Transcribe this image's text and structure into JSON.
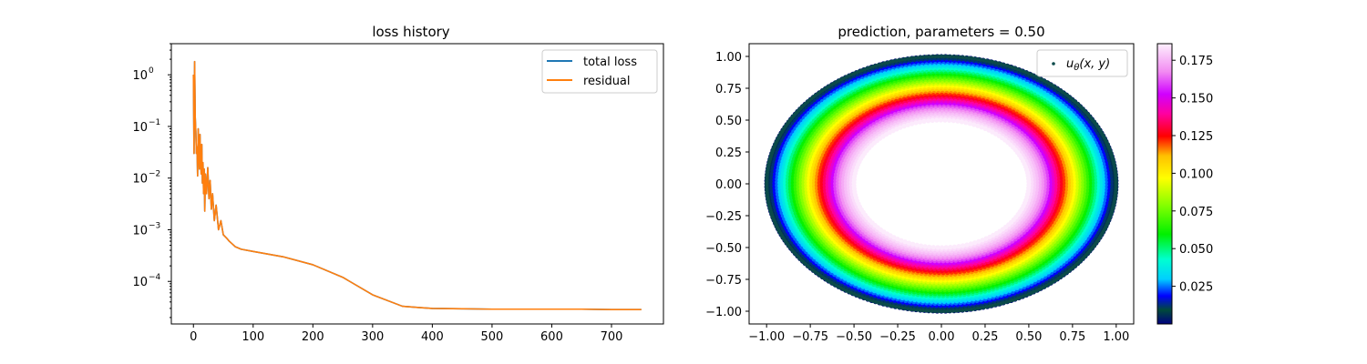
{
  "chart_data": [
    {
      "type": "line",
      "title": "loss history",
      "xlabel": "",
      "ylabel": "",
      "xlim": [
        -37,
        787
      ],
      "ylim": [
        1.5e-05,
        4.0
      ],
      "yscale": "log",
      "grid": false,
      "legend_placement": "top-right",
      "xticks": [
        0,
        100,
        200,
        300,
        400,
        500,
        600,
        700
      ],
      "xtick_labels": [
        "0",
        "100",
        "200",
        "300",
        "400",
        "500",
        "600",
        "700"
      ],
      "yticks": [
        0.0001,
        0.001,
        0.01,
        0.1,
        1
      ],
      "ytick_labels": [
        "10",
        "10",
        "10",
        "10",
        "10"
      ],
      "ytick_exponents": [
        "−4",
        "−3",
        "−2",
        "−1",
        "0"
      ],
      "series": [
        {
          "name": "total loss",
          "color": "#1f77b4",
          "x": [
            0,
            1,
            2,
            3,
            4,
            5,
            6,
            7,
            8,
            9,
            10,
            11,
            12,
            13,
            14,
            15,
            16,
            17,
            18,
            19,
            20,
            22,
            24,
            26,
            28,
            30,
            32,
            35,
            38,
            42,
            46,
            50,
            55,
            60,
            70,
            80,
            100,
            150,
            200,
            250,
            300,
            350,
            380,
            400,
            450,
            500,
            550,
            600,
            650,
            700,
            750
          ],
          "y": [
            1.0,
            0.03,
            1.8,
            0.15,
            0.08,
            0.03,
            0.04,
            0.011,
            0.09,
            0.04,
            0.015,
            0.07,
            0.025,
            0.012,
            0.045,
            0.008,
            0.02,
            0.005,
            0.015,
            0.0023,
            0.012,
            0.005,
            0.016,
            0.004,
            0.009,
            0.0025,
            0.005,
            0.0015,
            0.003,
            0.001,
            0.0015,
            0.0008,
            0.0007,
            0.0006,
            0.00047,
            0.00042,
            0.00038,
            0.0003,
            0.00021,
            0.00012,
            5.5e-05,
            3.3e-05,
            3.1e-05,
            3e-05,
            2.95e-05,
            2.9e-05,
            2.9e-05,
            2.9e-05,
            2.9e-05,
            2.85e-05,
            2.85e-05
          ]
        },
        {
          "name": "residual",
          "color": "#ff7f0e",
          "x": [
            0,
            1,
            2,
            3,
            4,
            5,
            6,
            7,
            8,
            9,
            10,
            11,
            12,
            13,
            14,
            15,
            16,
            17,
            18,
            19,
            20,
            22,
            24,
            26,
            28,
            30,
            32,
            35,
            38,
            42,
            46,
            50,
            55,
            60,
            70,
            80,
            100,
            150,
            200,
            250,
            300,
            350,
            380,
            400,
            450,
            500,
            550,
            600,
            650,
            700,
            750
          ],
          "y": [
            1.0,
            0.03,
            1.8,
            0.15,
            0.08,
            0.03,
            0.04,
            0.011,
            0.09,
            0.04,
            0.015,
            0.07,
            0.025,
            0.012,
            0.045,
            0.008,
            0.02,
            0.005,
            0.015,
            0.0023,
            0.012,
            0.005,
            0.016,
            0.004,
            0.009,
            0.0025,
            0.005,
            0.0015,
            0.003,
            0.001,
            0.0015,
            0.0008,
            0.0007,
            0.0006,
            0.00047,
            0.00042,
            0.00038,
            0.0003,
            0.00021,
            0.00012,
            5.5e-05,
            3.3e-05,
            3.1e-05,
            3e-05,
            2.95e-05,
            2.9e-05,
            2.9e-05,
            2.9e-05,
            2.9e-05,
            2.85e-05,
            2.85e-05
          ]
        }
      ]
    },
    {
      "type": "scatter",
      "title": "prediction, parameters = 0.50",
      "xlabel": "",
      "ylabel": "",
      "xlim": [
        -1.1,
        1.1
      ],
      "ylim": [
        -1.1,
        1.1
      ],
      "grid": false,
      "legend_placement": "top-right",
      "xticks": [
        -1.0,
        -0.75,
        -0.5,
        -0.25,
        0.0,
        0.25,
        0.5,
        0.75,
        1.0
      ],
      "xtick_labels": [
        "−1.00",
        "−0.75",
        "−0.50",
        "−0.25",
        "0.00",
        "0.25",
        "0.50",
        "0.75",
        "1.00"
      ],
      "yticks": [
        -1.0,
        -0.75,
        -0.5,
        -0.25,
        0.0,
        0.25,
        0.5,
        0.75,
        1.0
      ],
      "ytick_labels": [
        "−1.00",
        "−0.75",
        "−0.50",
        "−0.25",
        "0.00",
        "0.25",
        "0.50",
        "0.75",
        "1.00"
      ],
      "domain": {
        "shape": "annulus",
        "inner_radius": 0.5,
        "outer_radius": 1.0
      },
      "series": [
        {
          "name": "u_θ(x, y)",
          "legend_label": "u",
          "legend_subscript": "θ",
          "legend_args": "(x, y)",
          "marker_color": "#0b4a4a",
          "value_by_radius": {
            "r": [
              0.5,
              0.55,
              0.6,
              0.65,
              0.7,
              0.75,
              0.8,
              0.85,
              0.9,
              0.95,
              1.0
            ],
            "u": [
              0.185,
              0.176,
              0.162,
              0.14,
              0.12,
              0.1,
              0.08,
              0.06,
              0.04,
              0.02,
              0.0
            ]
          }
        }
      ],
      "colorbar": {
        "colormap": "gist_ncar",
        "vmin": 0.0,
        "vmax": 0.186,
        "ticks": [
          0.025,
          0.05,
          0.075,
          0.1,
          0.125,
          0.15,
          0.175
        ],
        "tick_labels": [
          "0.025",
          "0.050",
          "0.075",
          "0.100",
          "0.125",
          "0.150",
          "0.175"
        ],
        "stops": [
          {
            "v": 0.0,
            "color": "#000080"
          },
          {
            "v": 0.05,
            "color": "#004a3a"
          },
          {
            "v": 0.1,
            "color": "#0000ff"
          },
          {
            "v": 0.16,
            "color": "#00cfff"
          },
          {
            "v": 0.23,
            "color": "#00ffd0"
          },
          {
            "v": 0.32,
            "color": "#00f000"
          },
          {
            "v": 0.42,
            "color": "#80ff00"
          },
          {
            "v": 0.52,
            "color": "#ffff00"
          },
          {
            "v": 0.6,
            "color": "#ffc000"
          },
          {
            "v": 0.67,
            "color": "#ff0000"
          },
          {
            "v": 0.75,
            "color": "#ff00a0"
          },
          {
            "v": 0.82,
            "color": "#d000ff"
          },
          {
            "v": 0.9,
            "color": "#f28bf2"
          },
          {
            "v": 1.0,
            "color": "#fdf0fd"
          }
        ]
      }
    }
  ]
}
